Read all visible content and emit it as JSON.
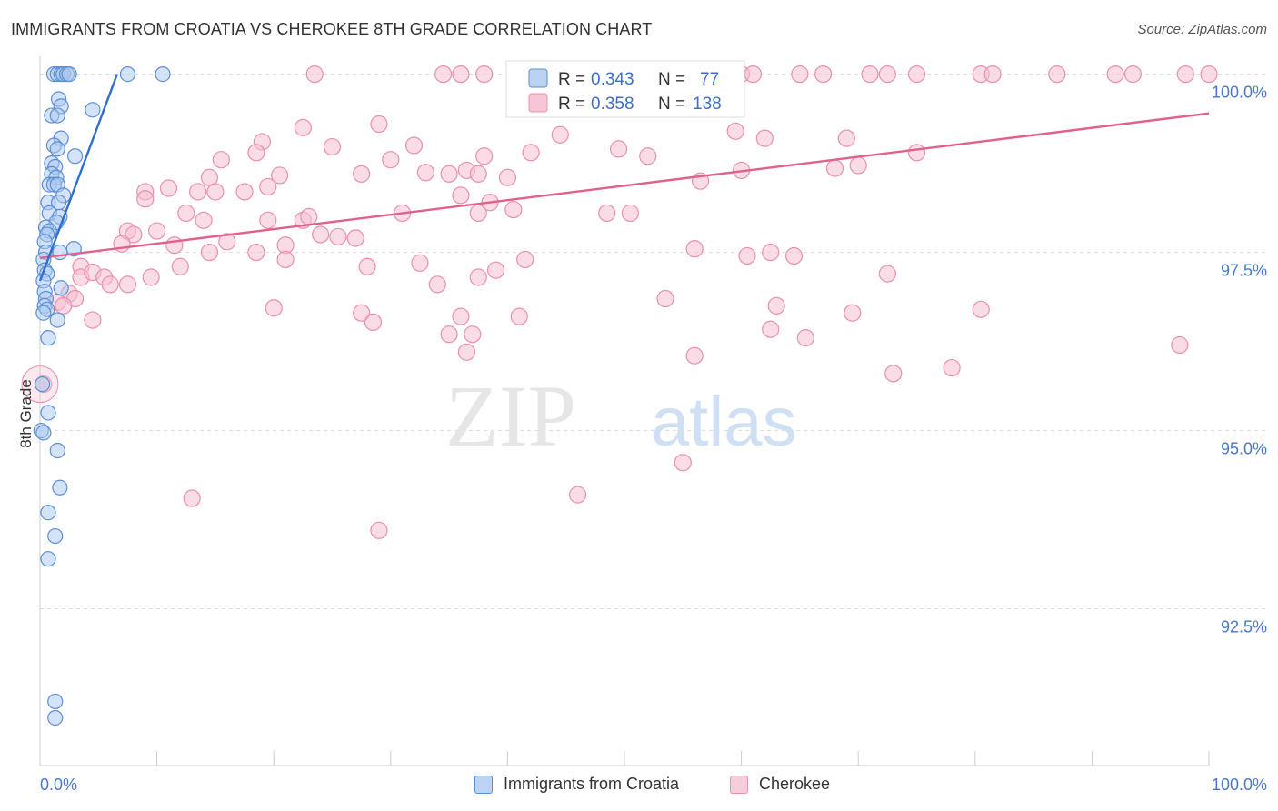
{
  "header": {
    "title": "IMMIGRANTS FROM CROATIA VS CHEROKEE 8TH GRADE CORRELATION CHART",
    "source": "Source: ZipAtlas.com"
  },
  "watermark": {
    "zip": "ZIP",
    "atlas": "atlas"
  },
  "colors": {
    "blue": "#5b8fd6",
    "blue_fill": "#aac7f0",
    "blue_line": "#2e6fd0",
    "pink": "#e890ad",
    "pink_fill": "#f6c0d2",
    "pink_line": "#e0628c",
    "axis_label": "#4a78c8",
    "grid": "#dcdcdc"
  },
  "legend_box": {
    "rows": [
      {
        "r_label": "R = ",
        "r_value": "0.343",
        "n_label": "N = ",
        "n_value": "77"
      },
      {
        "r_label": "R = ",
        "r_value": "0.358",
        "n_label": "N = ",
        "n_value": "138"
      }
    ]
  },
  "legend_bottom": {
    "series_a": "Immigrants from Croatia",
    "series_b": "Cherokee"
  },
  "chart_data": {
    "type": "scatter",
    "title": "IMMIGRANTS FROM CROATIA VS CHEROKEE 8TH GRADE CORRELATION CHART",
    "xlabel": "",
    "ylabel": "8th Grade",
    "xlim": [
      0,
      100
    ],
    "ylim": [
      90.3,
      100.25
    ],
    "x_tick_labels": [
      "0.0%",
      "100.0%"
    ],
    "y_ticks": [
      {
        "value": 100.0,
        "label": "100.0%"
      },
      {
        "value": 97.5,
        "label": "97.5%"
      },
      {
        "value": 95.0,
        "label": "95.0%"
      },
      {
        "value": 92.5,
        "label": "92.5%"
      }
    ],
    "series": [
      {
        "name": "Immigrants from Croatia",
        "R": 0.343,
        "N": 77,
        "trend": {
          "x": [
            0.0,
            6.6
          ],
          "y": [
            97.1,
            100.0
          ]
        },
        "points": [
          [
            1.2,
            100.0
          ],
          [
            1.5,
            100.0
          ],
          [
            1.8,
            100.0
          ],
          [
            2.0,
            100.0
          ],
          [
            2.3,
            100.0
          ],
          [
            2.5,
            100.0
          ],
          [
            7.5,
            100.0
          ],
          [
            10.5,
            100.0
          ],
          [
            1.6,
            99.65
          ],
          [
            1.8,
            99.55
          ],
          [
            1.0,
            99.42
          ],
          [
            1.5,
            99.42
          ],
          [
            4.5,
            99.5
          ],
          [
            1.8,
            99.1
          ],
          [
            1.2,
            99.0
          ],
          [
            1.5,
            98.95
          ],
          [
            3.0,
            98.85
          ],
          [
            1.0,
            98.75
          ],
          [
            1.3,
            98.7
          ],
          [
            1.0,
            98.6
          ],
          [
            1.4,
            98.55
          ],
          [
            0.8,
            98.45
          ],
          [
            1.2,
            98.45
          ],
          [
            1.5,
            98.45
          ],
          [
            2.0,
            98.3
          ],
          [
            0.7,
            98.2
          ],
          [
            1.6,
            98.2
          ],
          [
            0.8,
            98.05
          ],
          [
            1.7,
            98.0
          ],
          [
            1.4,
            97.92
          ],
          [
            0.5,
            97.85
          ],
          [
            0.8,
            97.8
          ],
          [
            0.6,
            97.75
          ],
          [
            0.4,
            97.65
          ],
          [
            2.9,
            97.55
          ],
          [
            0.5,
            97.5
          ],
          [
            1.7,
            97.5
          ],
          [
            0.3,
            97.4
          ],
          [
            0.4,
            97.25
          ],
          [
            0.6,
            97.2
          ],
          [
            0.3,
            97.1
          ],
          [
            1.8,
            97.0
          ],
          [
            0.4,
            96.95
          ],
          [
            0.5,
            96.85
          ],
          [
            0.4,
            96.75
          ],
          [
            0.6,
            96.7
          ],
          [
            0.3,
            96.65
          ],
          [
            1.5,
            96.55
          ],
          [
            0.7,
            96.3
          ],
          [
            0.2,
            95.65
          ],
          [
            0.7,
            95.25
          ],
          [
            0.1,
            95.0
          ],
          [
            0.3,
            94.97
          ],
          [
            1.5,
            94.72
          ],
          [
            1.7,
            94.2
          ],
          [
            0.7,
            93.85
          ],
          [
            1.3,
            93.52
          ],
          [
            0.7,
            93.2
          ],
          [
            1.3,
            91.2
          ],
          [
            1.3,
            90.97
          ]
        ]
      },
      {
        "name": "Cherokee",
        "R": 0.358,
        "N": 138,
        "trend": {
          "x": [
            0.0,
            100.0
          ],
          "y": [
            97.42,
            99.45
          ]
        },
        "points": [
          [
            23.5,
            100.0
          ],
          [
            34.5,
            100.0
          ],
          [
            36.0,
            100.0
          ],
          [
            38.0,
            100.0
          ],
          [
            45.0,
            100.0
          ],
          [
            49.0,
            100.0
          ],
          [
            51.0,
            100.0
          ],
          [
            55.0,
            100.0
          ],
          [
            60.0,
            100.0
          ],
          [
            61.0,
            100.0
          ],
          [
            65.0,
            100.0
          ],
          [
            67.0,
            100.0
          ],
          [
            71.0,
            100.0
          ],
          [
            72.5,
            100.0
          ],
          [
            75.0,
            100.0
          ],
          [
            80.5,
            100.0
          ],
          [
            81.5,
            100.0
          ],
          [
            87.0,
            100.0
          ],
          [
            92.0,
            100.0
          ],
          [
            93.5,
            100.0
          ],
          [
            98.0,
            100.0
          ],
          [
            100.0,
            100.0
          ],
          [
            22.5,
            99.25
          ],
          [
            29.0,
            99.3
          ],
          [
            44.5,
            99.15
          ],
          [
            59.5,
            99.2
          ],
          [
            62.0,
            99.1
          ],
          [
            69.0,
            99.1
          ],
          [
            19.0,
            99.05
          ],
          [
            25.0,
            98.98
          ],
          [
            32.0,
            99.0
          ],
          [
            49.5,
            98.95
          ],
          [
            15.5,
            98.8
          ],
          [
            18.5,
            98.9
          ],
          [
            30.0,
            98.8
          ],
          [
            38.0,
            98.85
          ],
          [
            42.0,
            98.9
          ],
          [
            52.0,
            98.85
          ],
          [
            75.0,
            98.9
          ],
          [
            60.0,
            98.65
          ],
          [
            68.0,
            98.68
          ],
          [
            70.0,
            98.72
          ],
          [
            14.5,
            98.55
          ],
          [
            20.5,
            98.58
          ],
          [
            27.5,
            98.6
          ],
          [
            33.0,
            98.62
          ],
          [
            35.0,
            98.6
          ],
          [
            36.5,
            98.65
          ],
          [
            37.5,
            98.6
          ],
          [
            40.0,
            98.55
          ],
          [
            56.5,
            98.5
          ],
          [
            9.0,
            98.35
          ],
          [
            11.0,
            98.4
          ],
          [
            13.5,
            98.35
          ],
          [
            17.5,
            98.35
          ],
          [
            19.5,
            98.42
          ],
          [
            9.0,
            98.25
          ],
          [
            15.0,
            98.35
          ],
          [
            31.0,
            98.05
          ],
          [
            36.0,
            98.3
          ],
          [
            37.5,
            98.05
          ],
          [
            38.5,
            98.2
          ],
          [
            40.5,
            98.1
          ],
          [
            12.5,
            98.05
          ],
          [
            14.0,
            97.95
          ],
          [
            19.5,
            97.95
          ],
          [
            22.5,
            97.95
          ],
          [
            23.0,
            98.0
          ],
          [
            48.5,
            98.05
          ],
          [
            50.5,
            98.05
          ],
          [
            7.5,
            97.8
          ],
          [
            8.0,
            97.75
          ],
          [
            10.0,
            97.8
          ],
          [
            16.0,
            97.65
          ],
          [
            21.0,
            97.6
          ],
          [
            24.0,
            97.75
          ],
          [
            25.5,
            97.72
          ],
          [
            27.0,
            97.7
          ],
          [
            11.5,
            97.6
          ],
          [
            14.5,
            97.5
          ],
          [
            18.5,
            97.5
          ],
          [
            7.0,
            97.62
          ],
          [
            41.5,
            97.4
          ],
          [
            56.0,
            97.55
          ],
          [
            60.5,
            97.45
          ],
          [
            62.5,
            97.5
          ],
          [
            64.5,
            97.45
          ],
          [
            3.5,
            97.3
          ],
          [
            3.5,
            97.15
          ],
          [
            4.5,
            97.22
          ],
          [
            5.5,
            97.15
          ],
          [
            6.0,
            97.05
          ],
          [
            7.5,
            97.05
          ],
          [
            9.5,
            97.15
          ],
          [
            12.0,
            97.3
          ],
          [
            21.0,
            97.4
          ],
          [
            28.0,
            97.3
          ],
          [
            32.5,
            97.35
          ],
          [
            34.0,
            97.05
          ],
          [
            37.5,
            97.15
          ],
          [
            39.0,
            97.25
          ],
          [
            53.5,
            96.85
          ],
          [
            2.5,
            96.92
          ],
          [
            3.0,
            96.85
          ],
          [
            1.5,
            96.8
          ],
          [
            2.0,
            96.75
          ],
          [
            4.5,
            96.55
          ],
          [
            20.0,
            96.72
          ],
          [
            27.5,
            96.65
          ],
          [
            28.5,
            96.52
          ],
          [
            36.0,
            96.6
          ],
          [
            41.0,
            96.6
          ],
          [
            63.0,
            96.75
          ],
          [
            69.5,
            96.65
          ],
          [
            72.5,
            97.2
          ],
          [
            80.5,
            96.7
          ],
          [
            35.0,
            96.35
          ],
          [
            37.0,
            96.35
          ],
          [
            36.5,
            96.1
          ],
          [
            56.0,
            96.05
          ],
          [
            62.5,
            96.42
          ],
          [
            65.5,
            96.3
          ],
          [
            73.0,
            95.8
          ],
          [
            78.0,
            95.88
          ],
          [
            97.5,
            96.2
          ],
          [
            0.3,
            95.65
          ],
          [
            55.0,
            94.55
          ],
          [
            13.0,
            94.05
          ],
          [
            46.0,
            94.1
          ],
          [
            29.0,
            93.6
          ]
        ]
      }
    ]
  }
}
